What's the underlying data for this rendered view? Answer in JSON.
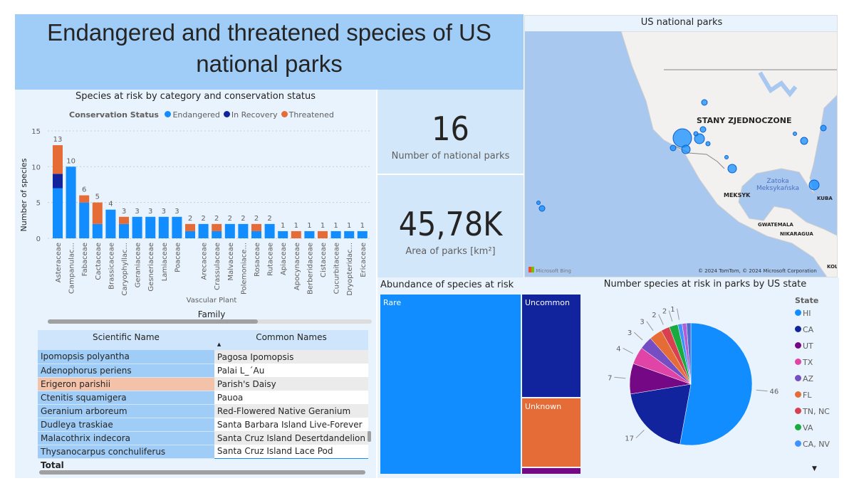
{
  "title": "Endangered and threatened species of US national parks",
  "bar_chart": {
    "title": "Species at risk by category and conservation status",
    "legend_title": "Conservation Status"
  },
  "chart_data": [
    {
      "type": "bar",
      "stacked": true,
      "title": "Species at risk by category and conservation status",
      "xlabel": "Family",
      "x_group_label": "Vascular Plant",
      "ylabel": "Number of species",
      "ylim": [
        0,
        15
      ],
      "yticks": [
        0,
        5,
        10,
        15
      ],
      "grid": true,
      "legend_position": "top",
      "categories": [
        "Asteraceae",
        "Campanulac...",
        "Fabaceae",
        "Cactaceae",
        "Brassicaceae",
        "Caryophyllac...",
        "Geraniaceae",
        "Gesneriaceae",
        "Lamiaceae",
        "Poaceae",
        "",
        "Arecaceae",
        "Crassulaceae",
        "Malvaceae",
        "Polemoniace...",
        "Rosaceae",
        "Rutaceae",
        "Apiaceae",
        "Apocynaceae",
        "Berberidaceae",
        "Cistaceae",
        "Cucurbitaceae",
        "Dryopteridac...",
        "Ericaceae"
      ],
      "totals": [
        13,
        10,
        6,
        5,
        4,
        3,
        3,
        3,
        3,
        3,
        2,
        2,
        2,
        2,
        2,
        2,
        2,
        1,
        1,
        1,
        1,
        1,
        1,
        1
      ],
      "series": [
        {
          "name": "Endangered",
          "color": "#118dff",
          "values": [
            7,
            10,
            5,
            2,
            4,
            2,
            3,
            3,
            3,
            3,
            1,
            2,
            1,
            2,
            2,
            1,
            2,
            1,
            0,
            1,
            0,
            1,
            1,
            1
          ]
        },
        {
          "name": "In Recovery",
          "color": "#12239e",
          "values": [
            2,
            0,
            0,
            0,
            0,
            0,
            0,
            0,
            0,
            0,
            0,
            0,
            0,
            0,
            0,
            0,
            0,
            0,
            0,
            0,
            0,
            0,
            0,
            0
          ]
        },
        {
          "name": "Threatened",
          "color": "#e66c37",
          "values": [
            4,
            0,
            1,
            3,
            0,
            1,
            0,
            0,
            0,
            0,
            1,
            0,
            1,
            0,
            0,
            1,
            0,
            0,
            1,
            0,
            1,
            0,
            0,
            0
          ]
        }
      ]
    },
    {
      "type": "pie",
      "title": "Number species at risk in parks by US state",
      "legend_title": "State",
      "legend_position": "right",
      "slices": [
        {
          "name": "HI",
          "value": 46,
          "color": "#118dff"
        },
        {
          "name": "CA",
          "value": 17,
          "color": "#12239e"
        },
        {
          "name": "UT",
          "value": 7,
          "color": "#750985"
        },
        {
          "name": "TX",
          "value": 4,
          "color": "#e044a7"
        },
        {
          "name": "AZ",
          "value": 3,
          "color": "#744ec2"
        },
        {
          "name": "FL",
          "value": 3,
          "color": "#e66c37"
        },
        {
          "name": "TN, NC",
          "value": 2,
          "color": "#d9404f"
        },
        {
          "name": "VA",
          "value": 2,
          "color": "#1aab40"
        },
        {
          "name": "CA, NV",
          "value": 1,
          "color": "#4092ff"
        },
        {
          "name": "",
          "value": 1,
          "color": "#b15fd5"
        },
        {
          "name": "",
          "value": 1,
          "color": "#4a6bd0"
        }
      ]
    }
  ],
  "kpi": {
    "parks_value": "16",
    "parks_label": "Number of national parks",
    "area_value": "45,78K",
    "area_label": "Area of parks [km²]"
  },
  "map": {
    "title": "US national parks",
    "labels": {
      "us": "STANY ZJEDNOCZONE",
      "mexico": "MEKSYK",
      "gulf1": "Zatoka",
      "gulf2": "Meksykańska",
      "cuba": "KUBA",
      "guatemala": "GWATEMALA",
      "nicaragua": "NIKARAGUA",
      "colombia": "KOL"
    },
    "brand": "Microsoft Bing",
    "copyright": "© 2024 TomTom, © 2024 Microsoft Corporation",
    "bubble_color": "#118dff"
  },
  "table": {
    "headers": [
      "Scientific Name",
      "Common Names"
    ],
    "rows": [
      [
        "Ipomopsis polyantha",
        "Pagosa Ipomopsis"
      ],
      [
        "Adenophorus periens",
        "Palai L_´Au"
      ],
      [
        "Erigeron parishii",
        "Parish's Daisy"
      ],
      [
        "Ctenitis squamigera",
        "Pauoa"
      ],
      [
        "Geranium arboreum",
        "Red-Flowered Native Geranium"
      ],
      [
        "Dudleya traskiae",
        "Santa Barbara Island Live-Forever"
      ],
      [
        "Malacothrix indecora",
        "Santa Cruz Island Desertdandelion"
      ],
      [
        "Thysanocarpus conchuliferus",
        "Santa Cruz Island Lace Pod"
      ]
    ],
    "highlighted_row": 2,
    "total_label": "Total",
    "sort": "ascending by Common Names"
  },
  "treemap": {
    "title": "Abundance of species at risk",
    "items": [
      {
        "label": "Rare",
        "color": "#118dff"
      },
      {
        "label": "Uncommon",
        "color": "#12239e"
      },
      {
        "label": "Unknown",
        "color": "#e66c37"
      },
      {
        "label": "",
        "color": "#750985"
      }
    ]
  }
}
